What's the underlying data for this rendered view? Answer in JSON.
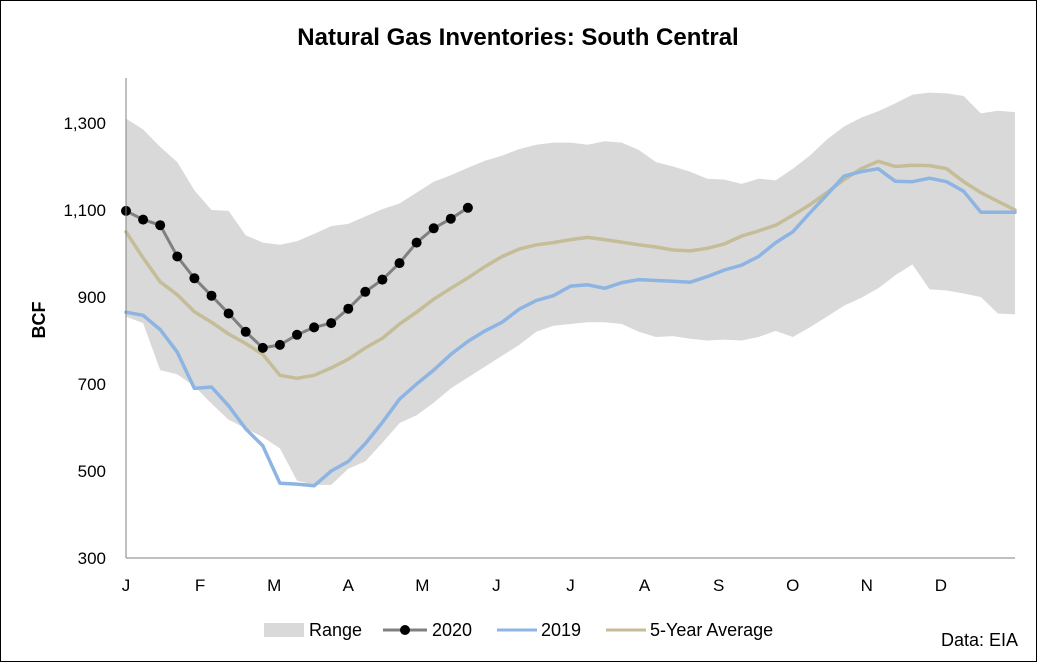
{
  "chart_data": {
    "type": "line",
    "title": "Natural Gas Inventories: South Central",
    "ylabel": "BCF",
    "xlabel": "",
    "x_tick_labels": [
      "J",
      "F",
      "M",
      "A",
      "M",
      "J",
      "J",
      "A",
      "S",
      "O",
      "N",
      "D"
    ],
    "y_ticks": [
      300,
      500,
      700,
      900,
      1100,
      1300
    ],
    "y_tick_labels": [
      "300",
      "500",
      "700",
      "900",
      "1,100",
      "1,300"
    ],
    "ylim": [
      300,
      1400
    ],
    "weeks": 53,
    "grid": false,
    "legend_position": "bottom",
    "source": "Data: EIA",
    "colors": {
      "range": "#d9d9d9",
      "s2020_line": "#808080",
      "s2020_marker": "#000000",
      "s2019": "#8db4e2",
      "avg5": "#c4bd97",
      "axis": "#808080"
    },
    "range": {
      "name": "Range",
      "upper": [
        1310,
        1285,
        1245,
        1210,
        1145,
        1100,
        1098,
        1042,
        1025,
        1020,
        1028,
        1045,
        1063,
        1068,
        1085,
        1102,
        1115,
        1140,
        1165,
        1180,
        1197,
        1213,
        1225,
        1240,
        1250,
        1255,
        1255,
        1250,
        1258,
        1255,
        1238,
        1210,
        1200,
        1188,
        1172,
        1170,
        1160,
        1172,
        1168,
        1195,
        1225,
        1262,
        1292,
        1312,
        1327,
        1345,
        1365,
        1370,
        1368,
        1362,
        1322,
        1328,
        1325
      ],
      "lower": [
        855,
        840,
        732,
        722,
        695,
        655,
        618,
        598,
        578,
        552,
        478,
        468,
        468,
        505,
        522,
        565,
        610,
        628,
        657,
        690,
        715,
        740,
        765,
        790,
        820,
        834,
        838,
        842,
        842,
        838,
        820,
        808,
        810,
        804,
        800,
        802,
        800,
        808,
        822,
        808,
        830,
        855,
        880,
        898,
        920,
        950,
        975,
        918,
        915,
        908,
        900,
        862,
        860
      ]
    },
    "series": [
      {
        "name": "2020",
        "values": [
          1098,
          1078,
          1065,
          993,
          943,
          903,
          862,
          820,
          783,
          790,
          813,
          830,
          840,
          873,
          912,
          940,
          978,
          1025,
          1058,
          1080,
          1105
        ]
      },
      {
        "name": "2019",
        "values": [
          865,
          858,
          825,
          773,
          690,
          693,
          650,
          597,
          558,
          472,
          470,
          466,
          500,
          522,
          563,
          612,
          665,
          700,
          732,
          768,
          798,
          822,
          842,
          872,
          892,
          903,
          925,
          928,
          920,
          933,
          940,
          938,
          936,
          934,
          947,
          962,
          973,
          993,
          1025,
          1050,
          1093,
          1135,
          1178,
          1188,
          1195,
          1166,
          1165,
          1173,
          1165,
          1143,
          1095,
          1095,
          1095
        ]
      },
      {
        "name": "5-Year Average",
        "values": [
          1050,
          990,
          935,
          905,
          866,
          842,
          815,
          793,
          768,
          720,
          713,
          720,
          737,
          757,
          783,
          805,
          838,
          865,
          895,
          920,
          944,
          970,
          993,
          1010,
          1020,
          1025,
          1032,
          1037,
          1032,
          1026,
          1020,
          1015,
          1008,
          1006,
          1012,
          1022,
          1040,
          1052,
          1065,
          1088,
          1112,
          1140,
          1170,
          1195,
          1212,
          1200,
          1203,
          1202,
          1195,
          1165,
          1140,
          1120,
          1100
        ]
      }
    ]
  }
}
